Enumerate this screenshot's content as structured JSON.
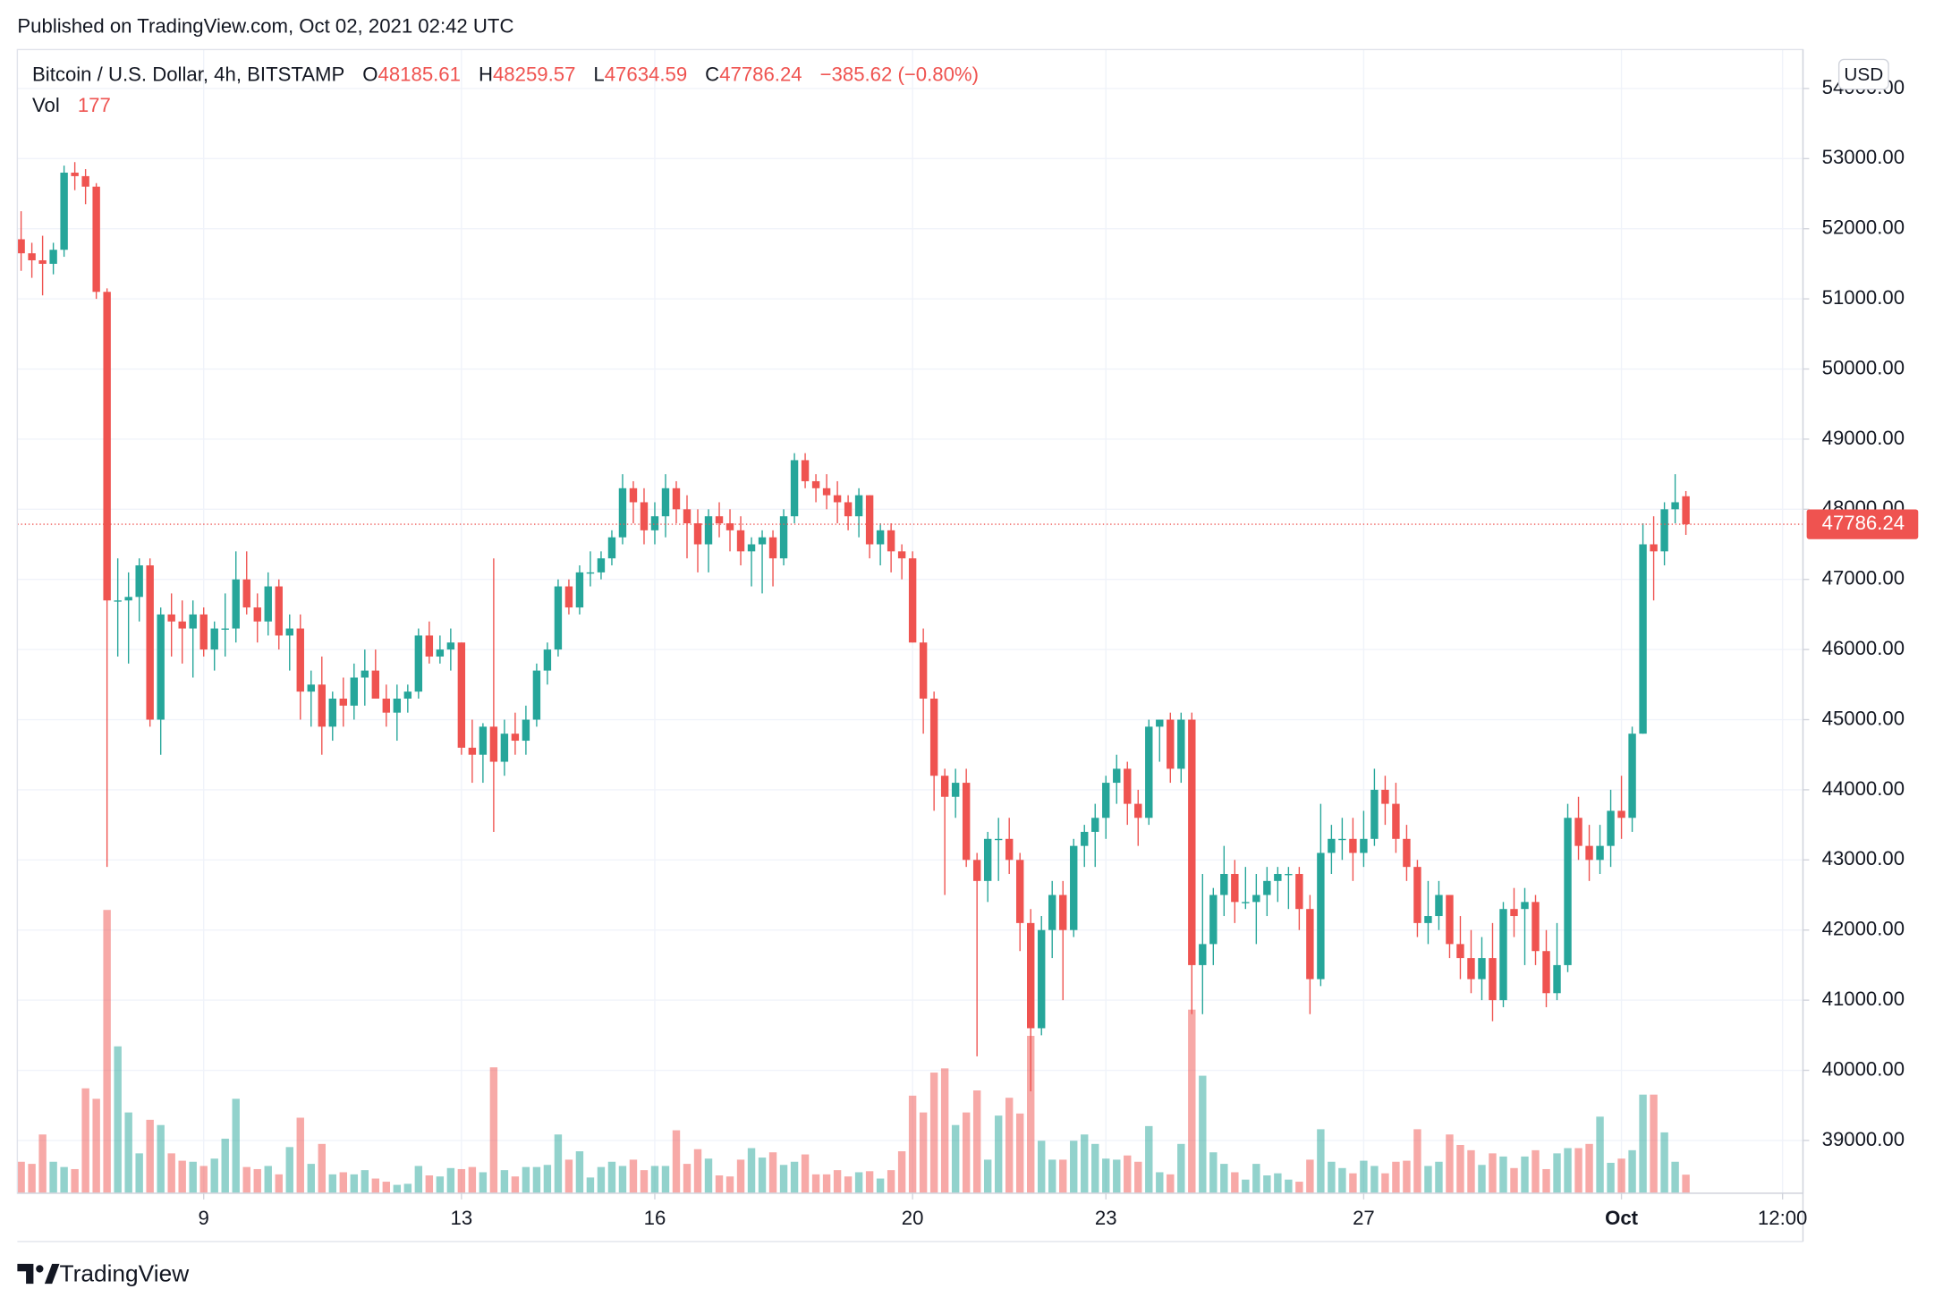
{
  "published": "Published on TradingView.com, Oct 02, 2021 02:42 UTC",
  "brand": "TradingView",
  "chart_data": {
    "type": "candlestick",
    "legend": {
      "symbol": "Bitcoin / U.S. Dollar, 4h, BITSTAMP",
      "open": "O",
      "high": "H",
      "low": "L",
      "close": "C",
      "change": "−385.62 (−0.80%)",
      "volume": "Vol"
    },
    "currency": "USD",
    "up_color": "#26a69a",
    "down_color": "#ef5350",
    "ylim": [
      38247,
      54555
    ],
    "yticks": [
      {
        "value": 39000,
        "label": "39000.00"
      },
      {
        "value": 40000,
        "label": "40000.00"
      },
      {
        "value": 41000,
        "label": "41000.00"
      },
      {
        "value": 42000,
        "label": "42000.00"
      },
      {
        "value": 43000,
        "label": "43000.00"
      },
      {
        "value": 44000,
        "label": "44000.00"
      },
      {
        "value": 45000,
        "label": "45000.00"
      },
      {
        "value": 46000,
        "label": "46000.00"
      },
      {
        "value": 47000,
        "label": "47000.00"
      },
      {
        "value": 48000,
        "label": "48000.00"
      },
      {
        "value": 49000,
        "label": "49000.00"
      },
      {
        "value": 50000,
        "label": "50000.00"
      },
      {
        "value": 51000,
        "label": "51000.00"
      },
      {
        "value": 52000,
        "label": "52000.00"
      },
      {
        "value": 53000,
        "label": "53000.00"
      },
      {
        "value": 54000,
        "label": "54000.00"
      }
    ],
    "y2lim": [
      0,
      10900
    ],
    "xlim": [
      -0.35,
      165.9
    ],
    "xticks": [
      {
        "value": 17,
        "label": "9"
      },
      {
        "value": 41,
        "label": "13"
      },
      {
        "value": 59,
        "label": "16"
      },
      {
        "value": 83,
        "label": "20"
      },
      {
        "value": 101,
        "label": "23"
      },
      {
        "value": 125,
        "label": "27"
      },
      {
        "value": 149,
        "label": "Oct"
      },
      {
        "value": 164,
        "label": "12:00"
      }
    ],
    "grid": true,
    "candles": [
      [
        51850,
        52250,
        51400,
        51650,
        300
      ],
      [
        51650,
        51800,
        51300,
        51550,
        280
      ],
      [
        51550,
        51900,
        51050,
        51500,
        560
      ],
      [
        51500,
        51800,
        51350,
        51700,
        300
      ],
      [
        51700,
        52900,
        51600,
        52800,
        250
      ],
      [
        52800,
        52950,
        52550,
        52750,
        230
      ],
      [
        52750,
        52850,
        52350,
        52600,
        1000
      ],
      [
        52600,
        52650,
        51000,
        51100,
        900
      ],
      [
        51100,
        51150,
        42900,
        46700,
        2700
      ],
      [
        46700,
        47300,
        45900,
        46700,
        1400
      ],
      [
        46700,
        47100,
        45800,
        46750,
        770
      ],
      [
        46750,
        47300,
        46400,
        47200,
        380
      ],
      [
        47200,
        47300,
        44900,
        45000,
        700
      ],
      [
        45000,
        46600,
        44500,
        46500,
        650
      ],
      [
        46500,
        46800,
        45900,
        46400,
        380
      ],
      [
        46400,
        46700,
        45800,
        46300,
        310
      ],
      [
        46300,
        46700,
        45600,
        46500,
        300
      ],
      [
        46500,
        46600,
        45900,
        46000,
        260
      ],
      [
        46000,
        46400,
        45700,
        46300,
        330
      ],
      [
        46300,
        46800,
        45900,
        46300,
        520
      ],
      [
        46300,
        47400,
        46100,
        47000,
        900
      ],
      [
        47000,
        47400,
        46500,
        46600,
        250
      ],
      [
        46600,
        46800,
        46100,
        46400,
        230
      ],
      [
        46400,
        47100,
        46200,
        46900,
        260
      ],
      [
        46900,
        47000,
        46000,
        46200,
        180
      ],
      [
        46200,
        46500,
        45700,
        46300,
        440
      ],
      [
        46300,
        46500,
        45000,
        45400,
        720
      ],
      [
        45400,
        45700,
        44900,
        45500,
        280
      ],
      [
        45500,
        45900,
        44500,
        44900,
        470
      ],
      [
        44900,
        45400,
        44700,
        45300,
        180
      ],
      [
        45300,
        45600,
        44900,
        45200,
        200
      ],
      [
        45200,
        45800,
        45000,
        45600,
        180
      ],
      [
        45600,
        46000,
        45200,
        45700,
        220
      ],
      [
        45700,
        46000,
        45300,
        45300,
        140
      ],
      [
        45300,
        45500,
        44900,
        45100,
        110
      ],
      [
        45100,
        45500,
        44700,
        45300,
        80
      ],
      [
        45300,
        45500,
        45100,
        45400,
        90
      ],
      [
        45400,
        46300,
        45300,
        46200,
        260
      ],
      [
        46200,
        46400,
        45800,
        45900,
        170
      ],
      [
        45900,
        46200,
        45800,
        46000,
        160
      ],
      [
        46000,
        46300,
        45700,
        46100,
        240
      ],
      [
        46100,
        46100,
        44500,
        44600,
        230
      ],
      [
        44600,
        45000,
        44100,
        44500,
        250
      ],
      [
        44500,
        44950,
        44100,
        44900,
        200
      ],
      [
        44900,
        47300,
        43400,
        44400,
        1200
      ],
      [
        44400,
        45000,
        44200,
        44800,
        220
      ],
      [
        44800,
        45100,
        44500,
        44700,
        160
      ],
      [
        44700,
        45200,
        44500,
        45000,
        250
      ],
      [
        45000,
        45800,
        44900,
        45700,
        250
      ],
      [
        45700,
        46100,
        45500,
        46000,
        270
      ],
      [
        46000,
        47000,
        45900,
        46900,
        560
      ],
      [
        46900,
        47000,
        46500,
        46600,
        320
      ],
      [
        46600,
        47200,
        46500,
        47100,
        400
      ],
      [
        47100,
        47400,
        46900,
        47100,
        150
      ],
      [
        47100,
        47400,
        47000,
        47300,
        250
      ],
      [
        47300,
        47700,
        47200,
        47600,
        300
      ],
      [
        47600,
        48500,
        47500,
        48300,
        260
      ],
      [
        48300,
        48400,
        47800,
        48100,
        320
      ],
      [
        48100,
        48300,
        47500,
        47700,
        220
      ],
      [
        47700,
        48100,
        47500,
        47900,
        260
      ],
      [
        47900,
        48500,
        47600,
        48300,
        260
      ],
      [
        48300,
        48400,
        47800,
        48000,
        600
      ],
      [
        48000,
        48200,
        47300,
        47800,
        280
      ],
      [
        47800,
        48000,
        47100,
        47500,
        420
      ],
      [
        47500,
        48000,
        47100,
        47900,
        330
      ],
      [
        47900,
        48100,
        47600,
        47800,
        170
      ],
      [
        47800,
        48000,
        47400,
        47700,
        160
      ],
      [
        47700,
        47900,
        47200,
        47400,
        320
      ],
      [
        47400,
        47600,
        46900,
        47500,
        430
      ],
      [
        47500,
        47700,
        46800,
        47600,
        340
      ],
      [
        47600,
        47700,
        46900,
        47300,
        390
      ],
      [
        47300,
        48000,
        47200,
        47900,
        270
      ],
      [
        47900,
        48800,
        47800,
        48700,
        300
      ],
      [
        48700,
        48800,
        48300,
        48400,
        370
      ],
      [
        48400,
        48500,
        48100,
        48300,
        180
      ],
      [
        48300,
        48500,
        48000,
        48200,
        180
      ],
      [
        48200,
        48400,
        47800,
        48100,
        220
      ],
      [
        48100,
        48200,
        47700,
        47900,
        160
      ],
      [
        47900,
        48300,
        47600,
        48200,
        200
      ],
      [
        48200,
        48200,
        47300,
        47500,
        210
      ],
      [
        47500,
        47800,
        47200,
        47700,
        140
      ],
      [
        47700,
        47800,
        47100,
        47400,
        220
      ],
      [
        47400,
        47500,
        47000,
        47300,
        400
      ],
      [
        47300,
        47400,
        46100,
        46100,
        930
      ],
      [
        46100,
        46300,
        44800,
        45300,
        770
      ],
      [
        45300,
        45400,
        43700,
        44200,
        1150
      ],
      [
        44200,
        44300,
        42500,
        43900,
        1190
      ],
      [
        43900,
        44300,
        43600,
        44100,
        650
      ],
      [
        44100,
        44300,
        42900,
        43000,
        770
      ],
      [
        43000,
        43100,
        40200,
        42700,
        980
      ],
      [
        42700,
        43400,
        42400,
        43300,
        320
      ],
      [
        43300,
        43600,
        42700,
        43300,
        740
      ],
      [
        43300,
        43600,
        42800,
        43000,
        910
      ],
      [
        43000,
        43100,
        41700,
        42100,
        760
      ],
      [
        42100,
        42300,
        39700,
        40600,
        1500
      ],
      [
        40600,
        42200,
        40500,
        42000,
        500
      ],
      [
        42000,
        42700,
        41600,
        42500,
        320
      ],
      [
        42500,
        42700,
        41000,
        42000,
        320
      ],
      [
        42000,
        43300,
        41900,
        43200,
        500
      ],
      [
        43200,
        43500,
        42900,
        43400,
        560
      ],
      [
        43400,
        43800,
        42900,
        43600,
        470
      ],
      [
        43600,
        44200,
        43300,
        44100,
        330
      ],
      [
        44100,
        44500,
        43800,
        44300,
        320
      ],
      [
        44300,
        44400,
        43500,
        43800,
        360
      ],
      [
        43800,
        44000,
        43200,
        43600,
        300
      ],
      [
        43600,
        45000,
        43500,
        44900,
        640
      ],
      [
        44900,
        45000,
        44400,
        45000,
        200
      ],
      [
        45000,
        45100,
        44100,
        44300,
        180
      ],
      [
        44300,
        45100,
        44100,
        45000,
        470
      ],
      [
        45000,
        45100,
        40800,
        41500,
        1750
      ],
      [
        41500,
        42800,
        40800,
        41800,
        1120
      ],
      [
        41800,
        42600,
        41500,
        42500,
        390
      ],
      [
        42500,
        43200,
        42200,
        42800,
        280
      ],
      [
        42800,
        43000,
        42100,
        42400,
        200
      ],
      [
        42400,
        42900,
        42300,
        42400,
        130
      ],
      [
        42400,
        42800,
        41800,
        42500,
        280
      ],
      [
        42500,
        42900,
        42200,
        42700,
        170
      ],
      [
        42700,
        42900,
        42400,
        42800,
        190
      ],
      [
        42800,
        42900,
        42300,
        42800,
        130
      ],
      [
        42800,
        42900,
        42000,
        42300,
        110
      ],
      [
        42300,
        42500,
        40800,
        41300,
        320
      ],
      [
        41300,
        43800,
        41200,
        43100,
        610
      ],
      [
        43100,
        43500,
        42800,
        43300,
        300
      ],
      [
        43300,
        43600,
        43000,
        43300,
        240
      ],
      [
        43300,
        43600,
        42700,
        43100,
        190
      ],
      [
        43100,
        43700,
        42900,
        43300,
        310
      ],
      [
        43300,
        44300,
        43200,
        44000,
        260
      ],
      [
        44000,
        44200,
        43500,
        43800,
        190
      ],
      [
        43800,
        44100,
        43100,
        43300,
        300
      ],
      [
        43300,
        43500,
        42700,
        42900,
        310
      ],
      [
        42900,
        43000,
        41900,
        42100,
        610
      ],
      [
        42100,
        42700,
        41800,
        42200,
        260
      ],
      [
        42200,
        42700,
        42000,
        42500,
        300
      ],
      [
        42500,
        42500,
        41600,
        41800,
        560
      ],
      [
        41800,
        42200,
        41300,
        41600,
        460
      ],
      [
        41600,
        42000,
        41100,
        41300,
        410
      ],
      [
        41300,
        41900,
        41000,
        41600,
        270
      ],
      [
        41600,
        42100,
        40700,
        41000,
        380
      ],
      [
        41000,
        42400,
        40900,
        42300,
        350
      ],
      [
        42300,
        42600,
        41900,
        42200,
        240
      ],
      [
        42300,
        42600,
        41500,
        42400,
        350
      ],
      [
        42400,
        42500,
        41500,
        41700,
        410
      ],
      [
        41700,
        42000,
        40900,
        41100,
        230
      ],
      [
        41100,
        42100,
        41000,
        41500,
        380
      ],
      [
        41500,
        43800,
        41400,
        43600,
        430
      ],
      [
        43600,
        43900,
        43000,
        43200,
        430
      ],
      [
        43200,
        43500,
        42700,
        43000,
        470
      ],
      [
        43000,
        43500,
        42800,
        43200,
        730
      ],
      [
        43200,
        44000,
        42900,
        43700,
        290
      ],
      [
        43700,
        44200,
        43300,
        43600,
        330
      ],
      [
        43600,
        44900,
        43400,
        44800,
        410
      ],
      [
        44800,
        47800,
        44800,
        47500,
        940
      ],
      [
        47500,
        47900,
        46700,
        47400,
        940
      ],
      [
        47400,
        48100,
        47200,
        48000,
        580
      ],
      [
        48000,
        48500,
        47800,
        48100,
        300
      ],
      [
        48185.61,
        48259.57,
        47634.59,
        47786.24,
        177
      ]
    ]
  }
}
